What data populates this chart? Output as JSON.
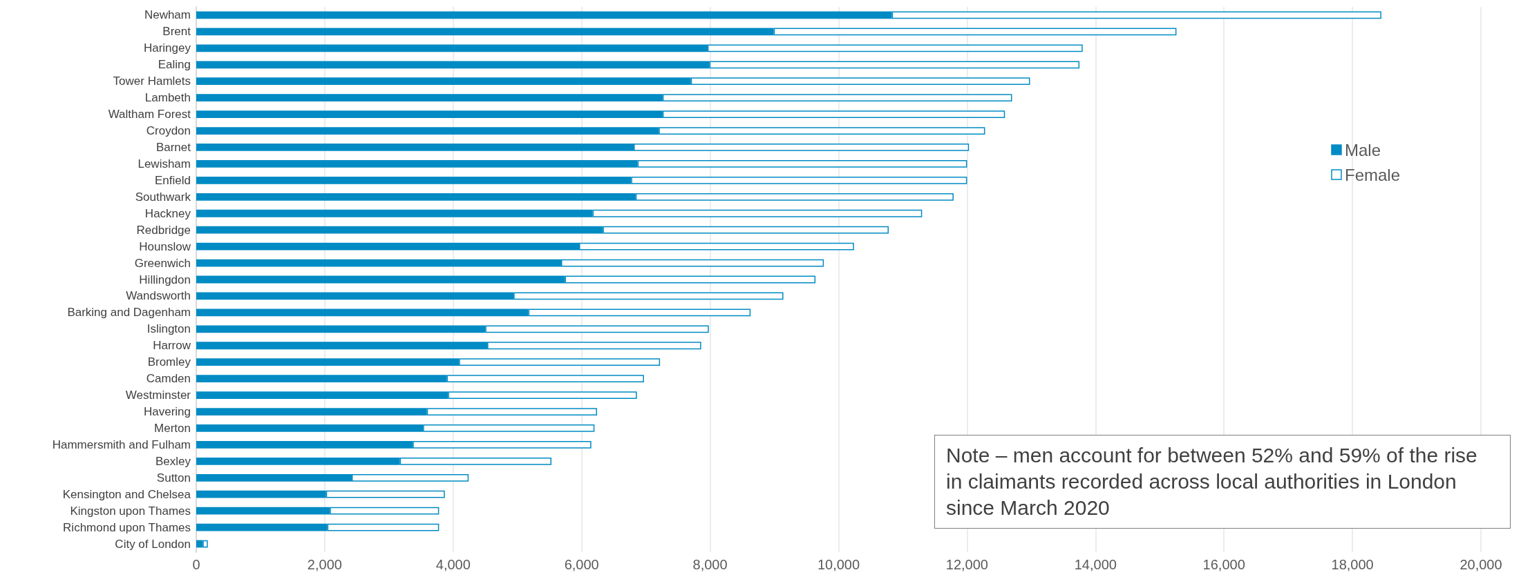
{
  "chart_data": {
    "type": "bar",
    "orientation": "horizontal",
    "stacked": true,
    "categories": [
      "Newham",
      "Brent",
      "Haringey",
      "Ealing",
      "Tower Hamlets",
      "Lambeth",
      "Waltham Forest",
      "Croydon",
      "Barnet",
      "Lewisham",
      "Enfield",
      "Southwark",
      "Hackney",
      "Redbridge",
      "Hounslow",
      "Greenwich",
      "Hillingdon",
      "Wandsworth",
      "Barking and Dagenham",
      "Islington",
      "Harrow",
      "Bromley",
      "Camden",
      "Westminster",
      "Havering",
      "Merton",
      "Hammersmith and Fulham",
      "Bexley",
      "Sutton",
      "Kensington and Chelsea",
      "Kingston upon Thames",
      "Richmond upon Thames",
      "City of London"
    ],
    "series": [
      {
        "name": "Male",
        "color": "#008bc4",
        "values": [
          10830,
          8990,
          7960,
          7990,
          7700,
          7260,
          7260,
          7200,
          6810,
          6870,
          6770,
          6840,
          6170,
          6330,
          5960,
          5680,
          5740,
          4940,
          5170,
          4500,
          4530,
          4090,
          3900,
          3920,
          3590,
          3530,
          3370,
          3170,
          2420,
          2020,
          2080,
          2040,
          100
        ]
      },
      {
        "name": "Female",
        "color": "#ffffff",
        "values": [
          7620,
          6270,
          5840,
          5760,
          5280,
          5440,
          5330,
          5080,
          5220,
          5130,
          5230,
          4950,
          5130,
          4450,
          4280,
          4090,
          3900,
          4200,
          3460,
          3480,
          3330,
          3130,
          3070,
          2940,
          2650,
          2670,
          2780,
          2360,
          1820,
          1850,
          1700,
          1740,
          80
        ]
      }
    ],
    "xlim": [
      0,
      20000
    ],
    "xticks": [
      0,
      {
        "value": 2000,
        "label": "2,000"
      },
      {
        "value": 4000,
        "label": "4,000"
      },
      {
        "value": 6000,
        "label": "6,000"
      },
      {
        "value": 8000,
        "label": "8,000"
      },
      {
        "value": 10000,
        "label": "10,000"
      },
      {
        "value": 12000,
        "label": "12,000"
      },
      {
        "value": 14000,
        "label": "14,000"
      },
      {
        "value": 16000,
        "label": "16,000"
      },
      {
        "value": 18000,
        "label": "18,000"
      },
      {
        "value": 20000,
        "label": "20,000"
      }
    ],
    "grid": "x",
    "legend": "right",
    "annotations": [
      "Note – men account for between 52% and 59% of the rise in claimants recorded across local authorities in London since March 2020"
    ]
  }
}
